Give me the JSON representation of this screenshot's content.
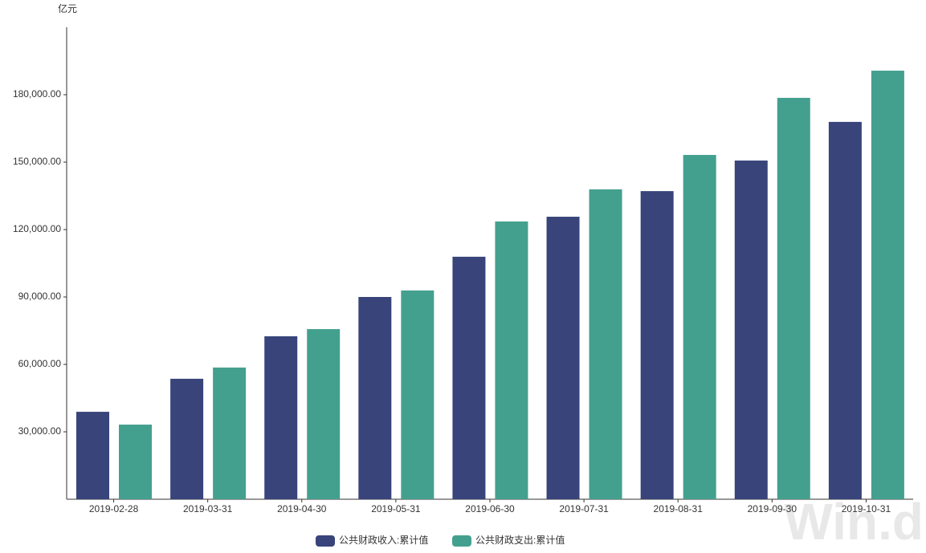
{
  "chart_data": {
    "type": "bar",
    "unit_label": "亿元",
    "categories": [
      "2019-02-28",
      "2019-03-31",
      "2019-04-30",
      "2019-05-31",
      "2019-06-30",
      "2019-07-31",
      "2019-08-31",
      "2019-09-30",
      "2019-10-31"
    ],
    "series": [
      {
        "name": "公共财政收入:累计值",
        "color": "#38447a",
        "values": [
          38900,
          53600,
          72500,
          90000,
          107900,
          125700,
          137100,
          150700,
          167900
        ]
      },
      {
        "name": "公共财政支出:累计值",
        "color": "#44a08e",
        "values": [
          33200,
          58600,
          75700,
          92900,
          123600,
          137900,
          153200,
          178600,
          190700
        ]
      }
    ],
    "ylim": [
      0,
      210000
    ],
    "yticks": [
      {
        "value": 30000,
        "label": "30,000.00"
      },
      {
        "value": 60000,
        "label": "60,000.00"
      },
      {
        "value": 90000,
        "label": "90,000.00"
      },
      {
        "value": 120000,
        "label": "120,000.00"
      },
      {
        "value": 150000,
        "label": "150,000.00"
      },
      {
        "value": 180000,
        "label": "180,000.00"
      }
    ],
    "grid": false,
    "legend": "bottom",
    "watermark": "Win.d"
  }
}
